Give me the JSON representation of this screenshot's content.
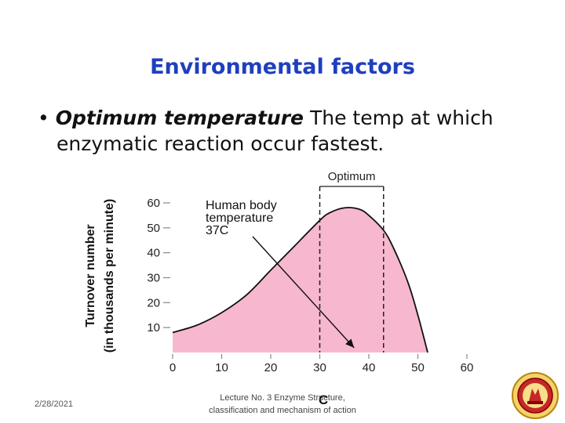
{
  "slide": {
    "title": "Environmental factors",
    "bullet": {
      "term": "Optimum temperature",
      "text_line1": " The temp at which",
      "text_line2": "enzymatic reaction occur fastest."
    },
    "footer": {
      "date": "2/28/2021",
      "lecture_line1": "Lecture No. 3 Enzyme Structure,",
      "lecture_line2": "classification and mechanism of action"
    }
  },
  "colors": {
    "title": "#1f3fbf",
    "curve_fill": "#f7b8cf",
    "curve_stroke": "#111111"
  },
  "chart_data": {
    "type": "area",
    "ylabel_line1": "Turnover number",
    "ylabel_line2": "(in thousands per minute)",
    "xlabel": "C",
    "xlim": [
      0,
      60
    ],
    "ylim": [
      0,
      60
    ],
    "x_ticks": [
      0,
      10,
      20,
      30,
      40,
      50,
      60
    ],
    "y_ticks": [
      10,
      20,
      30,
      40,
      50,
      60
    ],
    "grid": false,
    "x": [
      0,
      5,
      10,
      15,
      20,
      25,
      30,
      32,
      35,
      38,
      40,
      43,
      45,
      48,
      50,
      52
    ],
    "y": [
      8,
      11,
      16,
      23,
      33,
      43,
      53,
      56,
      58,
      57.5,
      55,
      49,
      42,
      28,
      15,
      0
    ],
    "optimum_range": [
      30,
      43
    ],
    "optimum_label": "Optimum",
    "annotation": {
      "line1": "Human body",
      "line2": "temperature",
      "line3": "37C",
      "arrow_to": [
        37,
        0
      ]
    }
  }
}
